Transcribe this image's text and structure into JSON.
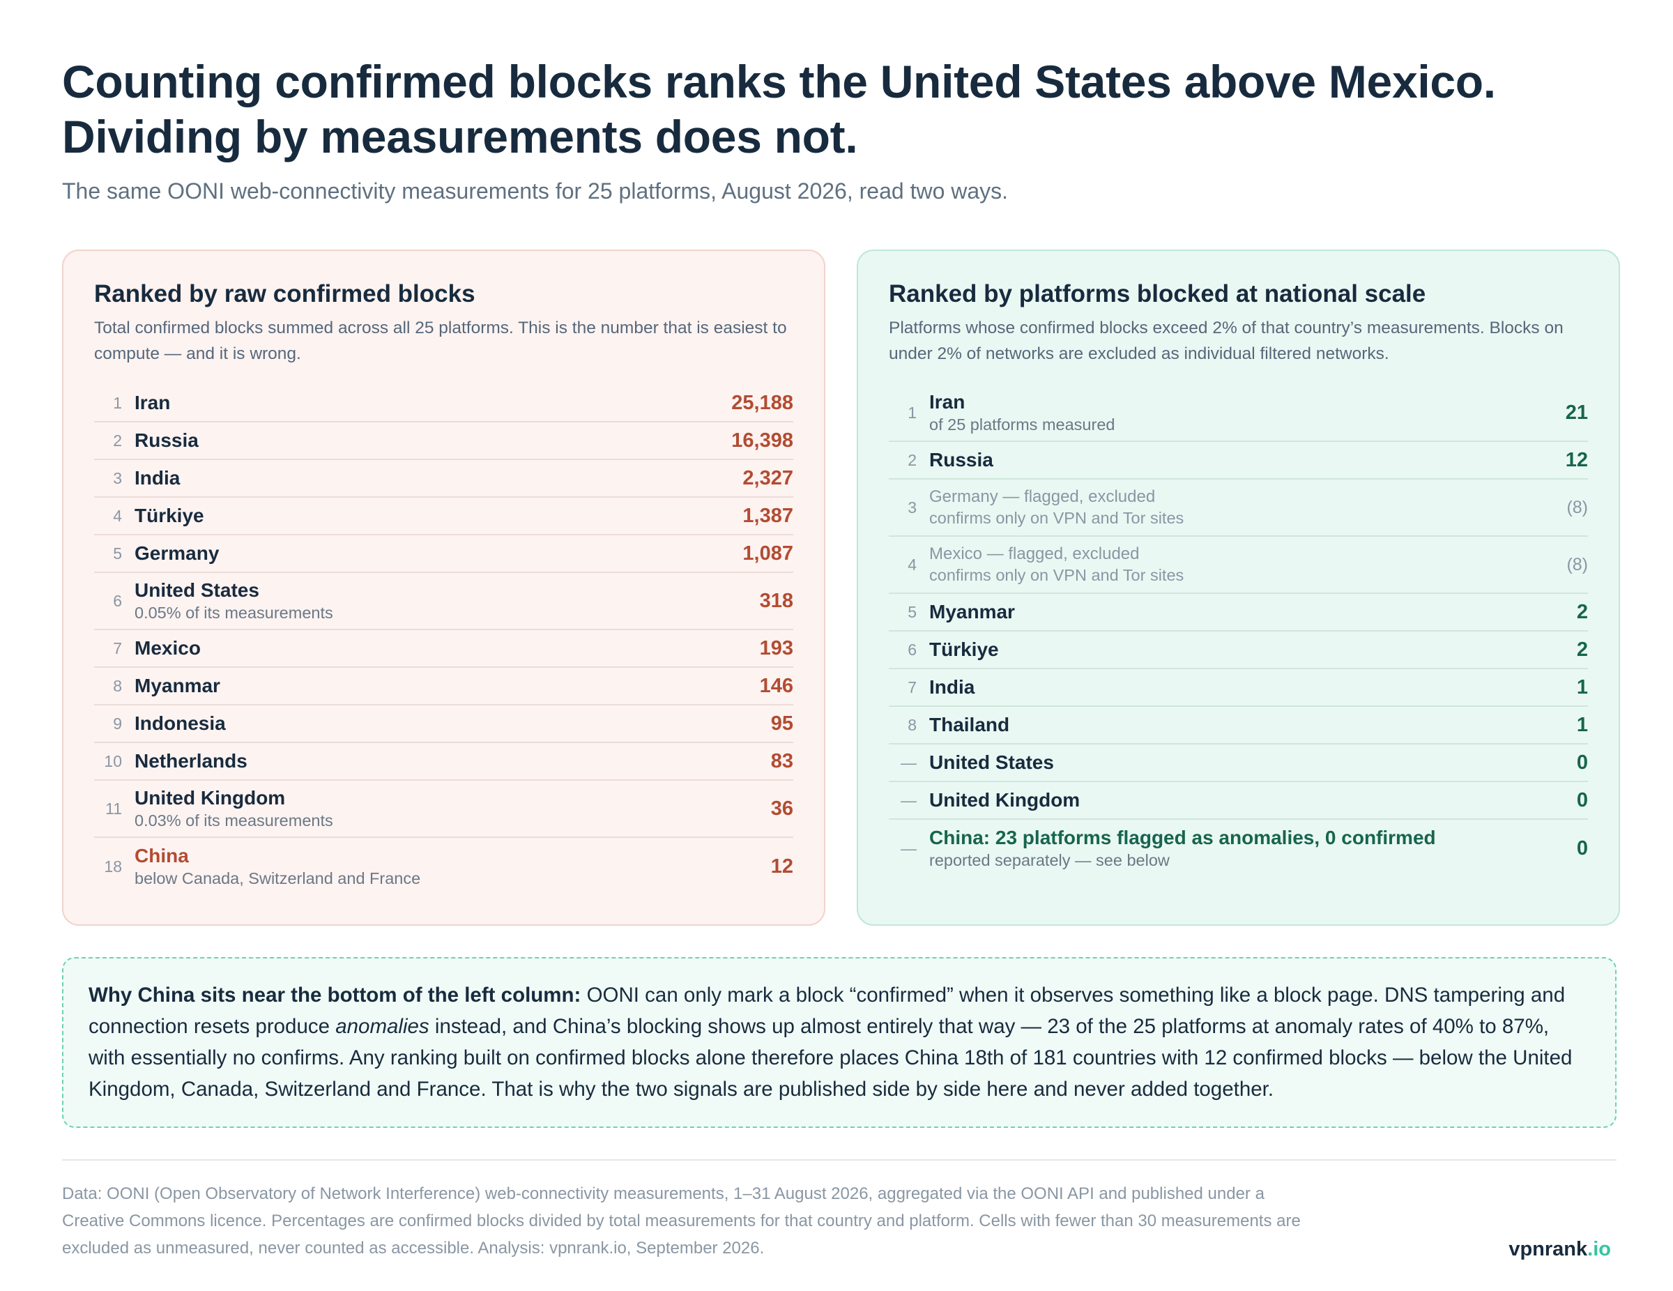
{
  "headline": {
    "line1": "Counting confirmed blocks ranks the United States above Mexico.",
    "line2": "Dividing by measurements does not."
  },
  "subtitle": "The same OONI web-connectivity measurements for 25 platforms, August 2026, read two ways.",
  "left_panel": {
    "title": "Ranked by raw confirmed blocks",
    "description": "Total confirmed blocks summed across all 25 platforms. This is the number that is easiest to compute — and it is wrong.",
    "rows": [
      {
        "rank": "1",
        "name": "Iran",
        "sub": "",
        "value": "25,188"
      },
      {
        "rank": "2",
        "name": "Russia",
        "sub": "",
        "value": "16,398"
      },
      {
        "rank": "3",
        "name": "India",
        "sub": "",
        "value": "2,327"
      },
      {
        "rank": "4",
        "name": "Türkiye",
        "sub": "",
        "value": "1,387"
      },
      {
        "rank": "5",
        "name": "Germany",
        "sub": "",
        "value": "1,087"
      },
      {
        "rank": "6",
        "name": "United States",
        "sub": "0.05% of its measurements",
        "value": "318"
      },
      {
        "rank": "7",
        "name": "Mexico",
        "sub": "",
        "value": "193"
      },
      {
        "rank": "8",
        "name": "Myanmar",
        "sub": "",
        "value": "146"
      },
      {
        "rank": "9",
        "name": "Indonesia",
        "sub": "",
        "value": "95"
      },
      {
        "rank": "10",
        "name": "Netherlands",
        "sub": "",
        "value": "83"
      },
      {
        "rank": "11",
        "name": "United Kingdom",
        "sub": "0.03% of its measurements",
        "value": "36"
      },
      {
        "rank": "18",
        "name": "China",
        "sub": "below Canada, Switzerland and France",
        "value": "12"
      }
    ]
  },
  "right_panel": {
    "title": "Ranked by platforms blocked at national scale",
    "description": "Platforms whose confirmed blocks exceed 2% of that country’s measurements. Blocks on under 2% of networks are excluded as individual filtered networks.",
    "rows": [
      {
        "rank": "1",
        "name": "Iran",
        "sub": "of 25 platforms measured",
        "value": "21"
      },
      {
        "rank": "2",
        "name": "Russia",
        "sub": "",
        "value": "12"
      },
      {
        "rank": "3",
        "name": "Germany — flagged, excluded",
        "sub": "confirms only on VPN and Tor sites",
        "value": "(8)"
      },
      {
        "rank": "4",
        "name": "Mexico — flagged, excluded",
        "sub": "confirms only on VPN and Tor sites",
        "value": "(8)"
      },
      {
        "rank": "5",
        "name": "Myanmar",
        "sub": "",
        "value": "2"
      },
      {
        "rank": "6",
        "name": "Türkiye",
        "sub": "",
        "value": "2"
      },
      {
        "rank": "7",
        "name": "India",
        "sub": "",
        "value": "1"
      },
      {
        "rank": "8",
        "name": "Thailand",
        "sub": "",
        "value": "1"
      },
      {
        "rank": "—",
        "name": "United States",
        "sub": "",
        "value": "0"
      },
      {
        "rank": "—",
        "name": "United Kingdom",
        "sub": "",
        "value": "0"
      },
      {
        "rank": "—",
        "name": "China: 23 platforms flagged as anomalies, 0 confirmed",
        "sub": "reported separately — see below",
        "value": "0"
      }
    ]
  },
  "note": {
    "lead": "Why China sits near the bottom of the left column:",
    "part1": " OONI can only mark a block “confirmed” when it observes something like a block page. DNS tampering and connection resets produce ",
    "emphasis": "anomalies",
    "part2": " instead, and China’s blocking shows up almost entirely that way — 23 of the 25 platforms at anomaly rates of 40% to 87%, with essentially no confirms. Any ranking built on confirmed blocks alone therefore places China 18th of 181 countries with 12 confirmed blocks — below the United Kingdom, Canada, Switzerland and France. That is why the two signals are published side by side here and never added together."
  },
  "footer": "Data: OONI (Open Observatory of Network Interference) web-connectivity measurements, 1–31 August 2026, aggregated via the OONI API and published under a Creative Commons licence. Percentages are confirmed blocks divided by total measurements for that country and platform. Cells with fewer than 30 measurements are excluded as unmeasured, never counted as accessible. Analysis: vpnrank.io, September 2026.",
  "brand": {
    "name": "vpnrank",
    "tld": ".io"
  }
}
